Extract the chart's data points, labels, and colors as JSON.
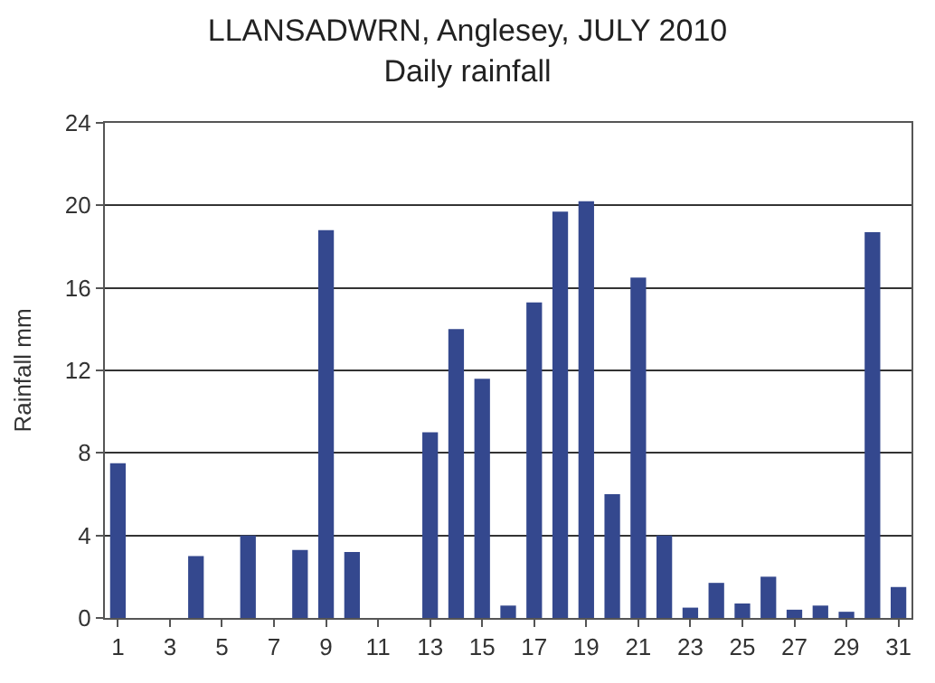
{
  "chart_data": {
    "type": "bar",
    "title": "LLANSADWRN, Anglesey, JULY 2010",
    "subtitle": "Daily rainfall",
    "ylabel": "Rainfall mm",
    "x": [
      1,
      2,
      3,
      4,
      5,
      6,
      7,
      8,
      9,
      10,
      11,
      12,
      13,
      14,
      15,
      16,
      17,
      18,
      19,
      20,
      21,
      22,
      23,
      24,
      25,
      26,
      27,
      28,
      29,
      30,
      31
    ],
    "values": [
      7.5,
      0,
      0,
      3.0,
      0,
      4.0,
      0,
      3.3,
      18.8,
      3.2,
      0,
      0,
      9.0,
      14.0,
      11.6,
      0.6,
      15.3,
      19.7,
      20.2,
      6.0,
      16.5,
      4.0,
      0.5,
      1.7,
      0.7,
      2.0,
      0.4,
      0.6,
      0.3,
      18.7,
      1.5
    ],
    "color": "#34488e",
    "xlim": [
      0.5,
      31.5
    ],
    "xticks": [
      1,
      3,
      5,
      7,
      9,
      11,
      13,
      15,
      17,
      19,
      21,
      23,
      25,
      27,
      29,
      31
    ],
    "ylim": [
      0,
      24
    ],
    "yticks": [
      0,
      4,
      8,
      12,
      16,
      20,
      24
    ],
    "grid": "y"
  }
}
